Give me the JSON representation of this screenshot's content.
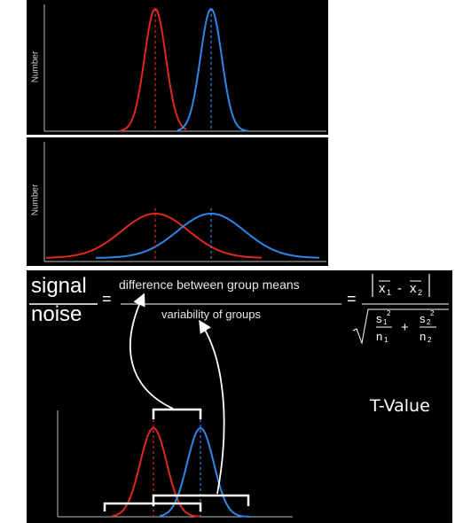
{
  "top_chart": {
    "ylabel": "Number",
    "series": [
      {
        "color": "#e0281e",
        "mean": 0.43,
        "spread": "narrow"
      },
      {
        "color": "#2f86e8",
        "mean": 0.6,
        "spread": "narrow"
      }
    ]
  },
  "mid_chart": {
    "ylabel": "Number",
    "series": [
      {
        "color": "#e0281e",
        "mean": 0.43,
        "spread": "wide"
      },
      {
        "color": "#2f86e8",
        "mean": 0.6,
        "spread": "wide"
      }
    ]
  },
  "equation": {
    "signal": "signal",
    "noise": "noise",
    "equals": "=",
    "numerator_text": "difference between group means",
    "denominator_text": "variability of groups",
    "formula": {
      "x1": "x",
      "x1_sub": "1",
      "minus": "-",
      "x2": "x",
      "x2_sub": "2",
      "s1": "s",
      "s1_sub": "1",
      "s1_sup": "2",
      "n1": "n",
      "n1_sub": "1",
      "plus": "+",
      "s2": "s",
      "s2_sub": "2",
      "s2_sup": "2",
      "n2": "n",
      "n2_sub": "2"
    }
  },
  "tvalue_label": "T-Value",
  "colors": {
    "red": "#e0281e",
    "blue": "#2f86e8",
    "background": "#000000",
    "axis": "#bdbdbd",
    "annotation": "#ffffff"
  }
}
